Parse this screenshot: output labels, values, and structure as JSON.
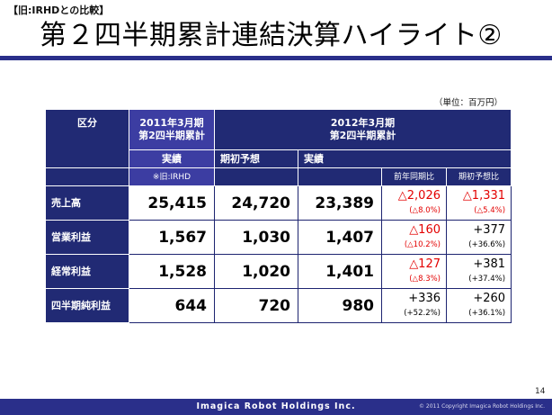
{
  "header": {
    "tag": "【旧:IRHDとの比較】",
    "title": "第２四半期累計連結決算ハイライト②"
  },
  "unit_note": "（単位：百万円）",
  "table": {
    "head_category": "区分",
    "group_2011": "2011年3月期\n第2四半期累計",
    "group_2012": "2012年3月期\n第2四半期累計",
    "col_actual_2011": "実績",
    "col_actual_2011_sub": "※旧:IRHD",
    "col_plan_2012": "期初予想",
    "col_actual_2012": "実績",
    "col_yoy": "前年同期比",
    "col_vs_plan": "期初予想比",
    "rows": [
      {
        "label": "売上高",
        "actual_2011": "25,415",
        "plan_2012": "24,720",
        "actual_2012": "23,389",
        "yoy": "△2,026",
        "yoy_pct": "(△8.0%)",
        "vs_plan": "△1,331",
        "vs_plan_pct": "(△5.4%)"
      },
      {
        "label": "営業利益",
        "actual_2011": "1,567",
        "plan_2012": "1,030",
        "actual_2012": "1,407",
        "yoy": "△160",
        "yoy_pct": "(△10.2%)",
        "vs_plan": "+377",
        "vs_plan_pct": "(+36.6%)"
      },
      {
        "label": "経常利益",
        "actual_2011": "1,528",
        "plan_2012": "1,020",
        "actual_2012": "1,401",
        "yoy": "△127",
        "yoy_pct": "(△8.3%)",
        "vs_plan": "+381",
        "vs_plan_pct": "(+37.4%)"
      },
      {
        "label": "四半期純利益",
        "actual_2011": "644",
        "plan_2012": "720",
        "actual_2012": "980",
        "yoy": "+336",
        "yoy_pct": "(+52.2%)",
        "vs_plan": "+260",
        "vs_plan_pct": "(+36.1%)"
      }
    ]
  },
  "colors": {
    "negative": "#e30000",
    "positive": "#000000",
    "header": "#212a74",
    "header_highlight": "#3c3da2"
  },
  "footer": {
    "company": "Imagica Robot Holdings Inc.",
    "copyright": "© 2011 Copyright Imagica Robot Holdings Inc.",
    "page_number": "14"
  }
}
